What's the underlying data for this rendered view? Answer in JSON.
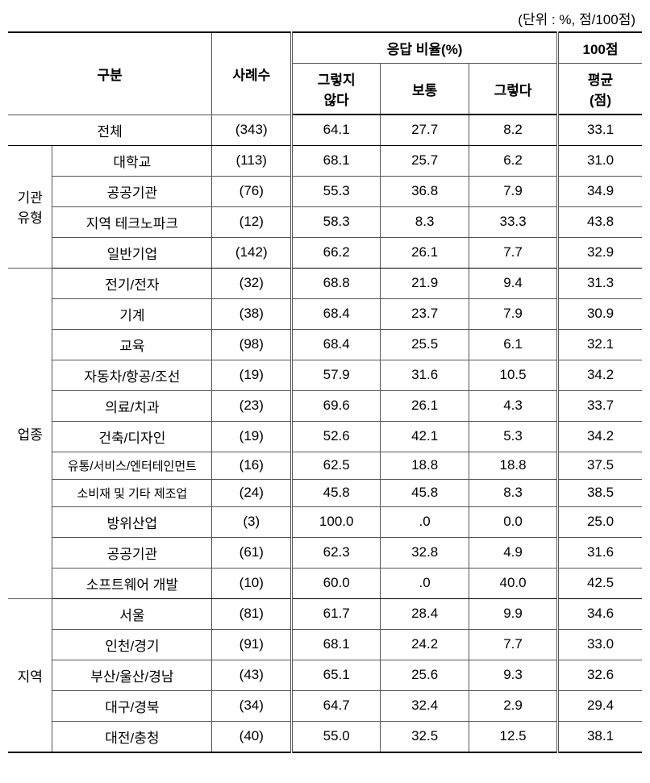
{
  "unit_label": "(단위 : %, 점/100점)",
  "headers": {
    "gubun": "구분",
    "cases": "사례수",
    "response_rate": "응답 비율(%)",
    "no": "그렇지\n않다",
    "normal": "보통",
    "yes": "그렇다",
    "score_top": "100점",
    "score_mid": "평균",
    "score_bot": "(점)"
  },
  "total": {
    "label": "전체",
    "cases": "(343)",
    "no": "64.1",
    "normal": "27.7",
    "yes": "8.2",
    "score": "33.1"
  },
  "groups": [
    {
      "category": "기관\n유형",
      "rows": [
        {
          "label": "대학교",
          "cases": "(113)",
          "no": "68.1",
          "normal": "25.7",
          "yes": "6.2",
          "score": "31.0"
        },
        {
          "label": "공공기관",
          "cases": "(76)",
          "no": "55.3",
          "normal": "36.8",
          "yes": "7.9",
          "score": "34.9"
        },
        {
          "label": "지역 테크노파크",
          "cases": "(12)",
          "no": "58.3",
          "normal": "8.3",
          "yes": "33.3",
          "score": "43.8"
        },
        {
          "label": "일반기업",
          "cases": "(142)",
          "no": "66.2",
          "normal": "26.1",
          "yes": "7.7",
          "score": "32.9"
        }
      ]
    },
    {
      "category": "업종",
      "rows": [
        {
          "label": "전기/전자",
          "cases": "(32)",
          "no": "68.8",
          "normal": "21.9",
          "yes": "9.4",
          "score": "31.3"
        },
        {
          "label": "기계",
          "cases": "(38)",
          "no": "68.4",
          "normal": "23.7",
          "yes": "7.9",
          "score": "30.9"
        },
        {
          "label": "교육",
          "cases": "(98)",
          "no": "68.4",
          "normal": "25.5",
          "yes": "6.1",
          "score": "32.1"
        },
        {
          "label": "자동차/항공/조선",
          "cases": "(19)",
          "no": "57.9",
          "normal": "31.6",
          "yes": "10.5",
          "score": "34.2"
        },
        {
          "label": "의료/치과",
          "cases": "(23)",
          "no": "69.6",
          "normal": "26.1",
          "yes": "4.3",
          "score": "33.7"
        },
        {
          "label": "건축/디자인",
          "cases": "(19)",
          "no": "52.6",
          "normal": "42.1",
          "yes": "5.3",
          "score": "34.2"
        },
        {
          "label": "유통/서비스/엔터테인먼트",
          "small": true,
          "cases": "(16)",
          "no": "62.5",
          "normal": "18.8",
          "yes": "18.8",
          "score": "37.5"
        },
        {
          "label": "소비재 및 기타 제조업",
          "small": true,
          "cases": "(24)",
          "no": "45.8",
          "normal": "45.8",
          "yes": "8.3",
          "score": "38.5"
        },
        {
          "label": "방위산업",
          "cases": "(3)",
          "no": "100.0",
          "normal": ".0",
          "yes": "0.0",
          "score": "25.0"
        },
        {
          "label": "공공기관",
          "cases": "(61)",
          "no": "62.3",
          "normal": "32.8",
          "yes": "4.9",
          "score": "31.6"
        },
        {
          "label": "소프트웨어 개발",
          "cases": "(10)",
          "no": "60.0",
          "normal": ".0",
          "yes": "40.0",
          "score": "42.5"
        }
      ]
    },
    {
      "category": "지역",
      "rows": [
        {
          "label": "서울",
          "cases": "(81)",
          "no": "61.7",
          "normal": "28.4",
          "yes": "9.9",
          "score": "34.6"
        },
        {
          "label": "인천/경기",
          "cases": "(91)",
          "no": "68.1",
          "normal": "24.2",
          "yes": "7.7",
          "score": "33.0"
        },
        {
          "label": "부산/울산/경남",
          "cases": "(43)",
          "no": "65.1",
          "normal": "25.6",
          "yes": "9.3",
          "score": "32.6"
        },
        {
          "label": "대구/경북",
          "cases": "(34)",
          "no": "64.7",
          "normal": "32.4",
          "yes": "2.9",
          "score": "29.4"
        },
        {
          "label": "대전/충청",
          "cases": "(40)",
          "no": "55.0",
          "normal": "32.5",
          "yes": "12.5",
          "score": "38.1"
        }
      ]
    }
  ]
}
